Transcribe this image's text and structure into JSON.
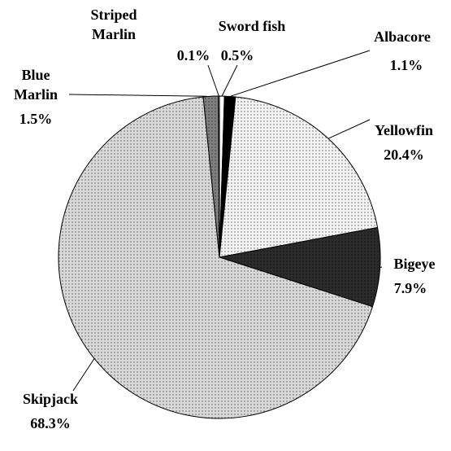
{
  "chart_data": {
    "type": "pie",
    "categories": [
      "Sword fish",
      "Albacore",
      "Yellowfin",
      "Bigeye",
      "Skipjack",
      "Blue Marlin",
      "Striped Marlin"
    ],
    "values": [
      0.5,
      1.1,
      20.4,
      7.9,
      68.3,
      1.5,
      0.1
    ],
    "value_labels": [
      "0.5%",
      "1.1%",
      "20.4%",
      "7.9%",
      "68.3%",
      "1.5%",
      "0.1%"
    ],
    "colors": [
      "#ffffff",
      "#000000",
      "#f2f2f2",
      "#2b2b2b",
      "#d9d9d9",
      "#7f7f7f",
      "#ffffff"
    ]
  }
}
